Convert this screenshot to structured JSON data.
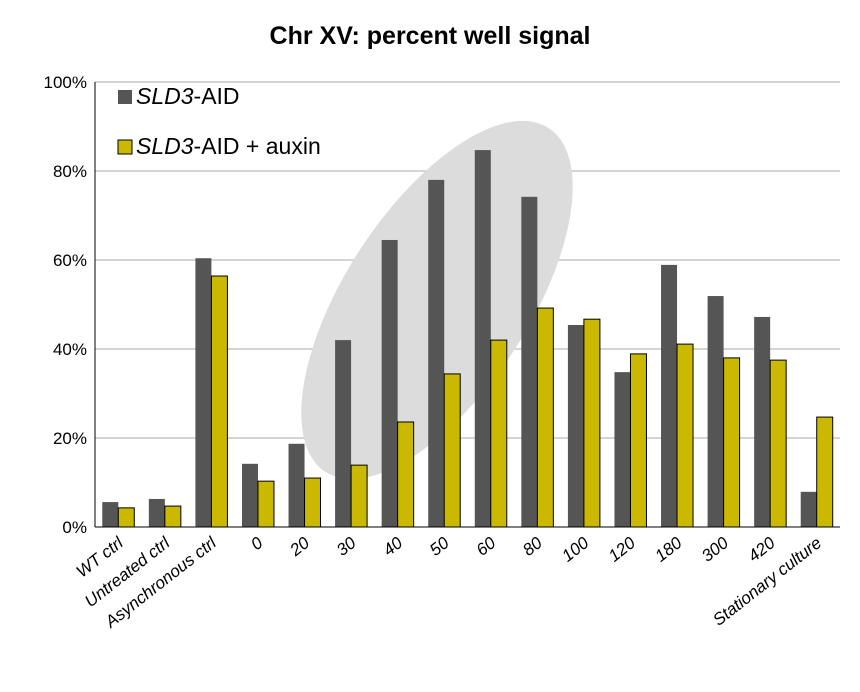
{
  "chart_data": {
    "type": "bar",
    "title": "Chr XV: percent well signal",
    "categories": [
      "WT ctrl",
      "Untreated ctrl",
      "Asynchronous ctrl",
      "0",
      "20",
      "30",
      "40",
      "50",
      "60",
      "80",
      "100",
      "120",
      "180",
      "300",
      "420",
      "Stationary culture"
    ],
    "series": [
      {
        "name": "SLD3-AID",
        "color": "#555555",
        "values": [
          5.6,
          6.3,
          60.4,
          14.2,
          18.7,
          42.0,
          64.5,
          78.0,
          84.7,
          74.2,
          45.4,
          34.8,
          58.9,
          51.9,
          47.2,
          7.9
        ]
      },
      {
        "name": "SLD3-AID + auxin",
        "color": "#cbb800",
        "values": [
          4.3,
          4.7,
          56.4,
          10.3,
          11.0,
          13.9,
          23.6,
          34.4,
          42.0,
          49.2,
          46.7,
          38.9,
          41.1,
          38.0,
          37.5,
          24.7
        ]
      }
    ],
    "ylim": [
      0,
      100
    ],
    "yticks": [
      {
        "value": 0,
        "label": "0%"
      },
      {
        "value": 20,
        "label": "20%"
      },
      {
        "value": 40,
        "label": "40%"
      },
      {
        "value": 60,
        "label": "60%"
      },
      {
        "value": 80,
        "label": "80%"
      },
      {
        "value": 100,
        "label": "100%"
      }
    ],
    "grid": true,
    "legend": "upper left"
  }
}
